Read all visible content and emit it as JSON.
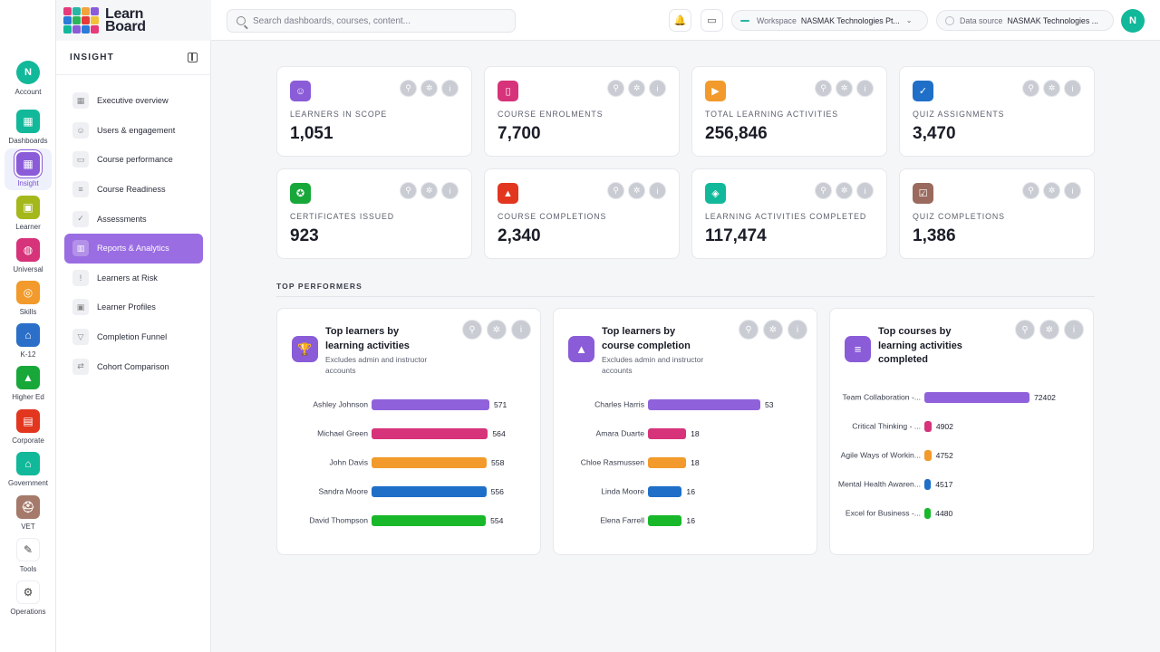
{
  "brand": {
    "line1": "Learn",
    "line2": "Board",
    "tiles": [
      "#e63a7a",
      "#2bb5a5",
      "#f2a33a",
      "#8a5cd8",
      "#2b7bd8",
      "#2bb55a",
      "#e63a3a",
      "#f2c23a",
      "#12b89a",
      "#8a5cd8",
      "#2b7bd8",
      "#e63a7a"
    ]
  },
  "rail": [
    {
      "label": "Account",
      "glyph": "N",
      "color": "#12b89a",
      "icon": "account-avatar"
    },
    {
      "label": "Dashboards",
      "glyph": "▦",
      "color": "#12b89a",
      "icon": "dashboards-icon"
    },
    {
      "label": "Insight",
      "glyph": "▦",
      "color": "#8a5cd8",
      "icon": "insight-icon",
      "active": true
    },
    {
      "label": "Learner",
      "glyph": "▣",
      "color": "#a5b81b",
      "icon": "learner-icon"
    },
    {
      "label": "Universal",
      "glyph": "◍",
      "color": "#d6337a",
      "icon": "universal-icon"
    },
    {
      "label": "Skills",
      "glyph": "◎",
      "color": "#f29a2b",
      "icon": "skills-icon"
    },
    {
      "label": "K-12",
      "glyph": "⌂",
      "color": "#2b6fc8",
      "icon": "k12-icon"
    },
    {
      "label": "Higher Ed",
      "glyph": "▲",
      "color": "#18a83a",
      "icon": "higher-ed-icon"
    },
    {
      "label": "Corporate",
      "glyph": "▤",
      "color": "#e2361f",
      "icon": "corporate-icon"
    },
    {
      "label": "Government",
      "glyph": "⌂",
      "color": "#12b89a",
      "icon": "government-icon"
    },
    {
      "label": "VET",
      "glyph": "⛑",
      "color": "#a57a6a",
      "icon": "vet-icon"
    },
    {
      "label": "Tools",
      "glyph": "✎",
      "color": "",
      "icon": "tools-icon"
    },
    {
      "label": "Operations",
      "glyph": "⚙",
      "color": "",
      "icon": "operations-icon"
    }
  ],
  "side": {
    "title": "INSIGHT",
    "items": [
      {
        "label": "Executive overview",
        "glyph": "▦",
        "icon": "executive-overview-icon"
      },
      {
        "label": "Users & engagement",
        "glyph": "☺",
        "icon": "users-engagement-icon"
      },
      {
        "label": "Course performance",
        "glyph": "▭",
        "icon": "course-performance-icon"
      },
      {
        "label": "Course Readiness",
        "glyph": "≡",
        "icon": "course-readiness-icon"
      },
      {
        "label": "Assessments",
        "glyph": "✓",
        "icon": "assessments-icon"
      },
      {
        "label": "Reports & Analytics",
        "glyph": "▥",
        "icon": "reports-analytics-icon",
        "active": true
      },
      {
        "label": "Learners at Risk",
        "glyph": "!",
        "icon": "learners-at-risk-icon"
      },
      {
        "label": "Learner Profiles",
        "glyph": "▣",
        "icon": "learner-profiles-icon"
      },
      {
        "label": "Completion Funnel",
        "glyph": "▽",
        "icon": "completion-funnel-icon"
      },
      {
        "label": "Cohort Comparison",
        "glyph": "⇄",
        "icon": "cohort-comparison-icon"
      }
    ]
  },
  "topbar": {
    "search_placeholder": "Search dashboards, courses, content...",
    "workspace_label": "Workspace",
    "workspace_value": "NASMAK Technologies Pt...",
    "datasource_label": "Data source",
    "datasource_value": "NASMAK Technologies ...",
    "avatar": "N"
  },
  "kpis": [
    {
      "label": "LEARNERS IN SCOPE",
      "value": "1,051",
      "color": "#8a5cd8",
      "glyph": "☺",
      "icon": "learners-icon"
    },
    {
      "label": "COURSE ENROLMENTS",
      "value": "7,700",
      "color": "#d6337a",
      "glyph": "▯",
      "icon": "book-icon"
    },
    {
      "label": "TOTAL LEARNING ACTIVITIES",
      "value": "256,846",
      "color": "#f29a2b",
      "glyph": "▶",
      "icon": "play-icon"
    },
    {
      "label": "QUIZ ASSIGNMENTS",
      "value": "3,470",
      "color": "#1f6fc8",
      "glyph": "✓",
      "icon": "clipboard-icon"
    },
    {
      "label": "CERTIFICATES ISSUED",
      "value": "923",
      "color": "#18a83a",
      "glyph": "✪",
      "icon": "certificate-icon"
    },
    {
      "label": "COURSE COMPLETIONS",
      "value": "2,340",
      "color": "#e2361f",
      "glyph": "▲",
      "icon": "graduation-cap-icon"
    },
    {
      "label": "LEARNING ACTIVITIES COMPLETED",
      "value": "117,474",
      "color": "#12b89a",
      "glyph": "◈",
      "icon": "layers-icon"
    },
    {
      "label": "QUIZ COMPLETIONS",
      "value": "1,386",
      "color": "#9a6a5e",
      "glyph": "☑",
      "icon": "checkbox-icon"
    }
  ],
  "section_title": "TOP PERFORMERS",
  "panels": [
    {
      "title": "Top learners by learning activities",
      "subtitle": "Excludes admin and instructor accounts",
      "glyph": "🏆",
      "icon": "trophy-icon",
      "max": 571,
      "rows": [
        {
          "label": "Ashley Johnson",
          "value": 571,
          "color": "#8f62dc"
        },
        {
          "label": "Michael Green",
          "value": 564,
          "color": "#d6337a"
        },
        {
          "label": "John Davis",
          "value": 558,
          "color": "#f29a2b"
        },
        {
          "label": "Sandra Moore",
          "value": 556,
          "color": "#1f6fc8"
        },
        {
          "label": "David Thompson",
          "value": 554,
          "color": "#18b82a"
        }
      ]
    },
    {
      "title": "Top learners by course completion",
      "subtitle": "Excludes admin and instructor accounts",
      "glyph": "▲",
      "icon": "graduation-cap-icon",
      "max": 53,
      "rows": [
        {
          "label": "Charles Harris",
          "value": 53,
          "color": "#8f62dc"
        },
        {
          "label": "Amara Duarte",
          "value": 18,
          "color": "#d6337a"
        },
        {
          "label": "Chloe Rasmussen",
          "value": 18,
          "color": "#f29a2b"
        },
        {
          "label": "Linda Moore",
          "value": 16,
          "color": "#1f6fc8"
        },
        {
          "label": "Elena Farrell",
          "value": 16,
          "color": "#18b82a"
        }
      ]
    },
    {
      "title": "Top courses by learning activities completed",
      "subtitle": "",
      "glyph": "≡",
      "icon": "list-icon",
      "max": 72402,
      "rows": [
        {
          "label": "Team Collaboration -...",
          "value": 72402,
          "color": "#8f62dc"
        },
        {
          "label": "Critical Thinking - ...",
          "value": 4902,
          "color": "#d6337a"
        },
        {
          "label": "Agile Ways of Workin...",
          "value": 4752,
          "color": "#f29a2b"
        },
        {
          "label": "Mental Health Awaren...",
          "value": 4517,
          "color": "#1f6fc8"
        },
        {
          "label": "Excel for Business -...",
          "value": 4480,
          "color": "#18b82a"
        }
      ]
    }
  ]
}
